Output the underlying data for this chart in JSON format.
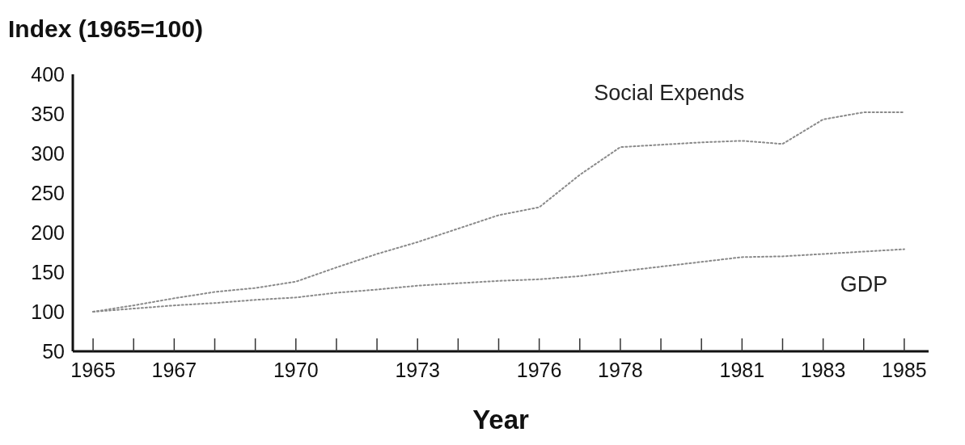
{
  "chart_data": {
    "type": "line",
    "title": "Index (1965=100)",
    "xlabel": "Year",
    "x": [
      1965,
      1966,
      1967,
      1968,
      1969,
      1970,
      1971,
      1972,
      1973,
      1974,
      1975,
      1976,
      1977,
      1978,
      1979,
      1980,
      1981,
      1982,
      1983,
      1984,
      1985
    ],
    "series": [
      {
        "name": "Social Expends",
        "color": "#8a8a8a",
        "values": [
          100,
          108,
          117,
          125,
          130,
          138,
          156,
          173,
          188,
          205,
          222,
          232,
          273,
          308,
          311,
          314,
          316,
          312,
          343,
          352,
          352
        ]
      },
      {
        "name": "GDP",
        "color": "#8a8a8a",
        "values": [
          100,
          104,
          108,
          111,
          115,
          118,
          124,
          128,
          133,
          136,
          139,
          141,
          145,
          151,
          157,
          163,
          169,
          170,
          173,
          176,
          179
        ]
      }
    ],
    "xlim": [
      1964.5,
      1985.6
    ],
    "xticks": [
      1965,
      {
        "value": 1966,
        "label": null
      },
      1967,
      {
        "value": 1968,
        "label": null
      },
      {
        "value": 1969,
        "label": null
      },
      1970,
      {
        "value": 1971,
        "label": null
      },
      {
        "value": 1972,
        "label": null
      },
      1973,
      {
        "value": 1974,
        "label": null
      },
      {
        "value": 1975,
        "label": null
      },
      1976,
      {
        "value": 1977,
        "label": null
      },
      1978,
      {
        "value": 1979,
        "label": null
      },
      {
        "value": 1980,
        "label": null
      },
      1981,
      {
        "value": 1982,
        "label": null
      },
      1983,
      {
        "value": 1984,
        "label": null
      },
      1985
    ],
    "ylim": [
      50,
      400
    ],
    "yticks": [
      50,
      100,
      150,
      200,
      250,
      300,
      350,
      400
    ],
    "grid": false,
    "legend": false,
    "marker": "none",
    "line_style": "dotted"
  }
}
